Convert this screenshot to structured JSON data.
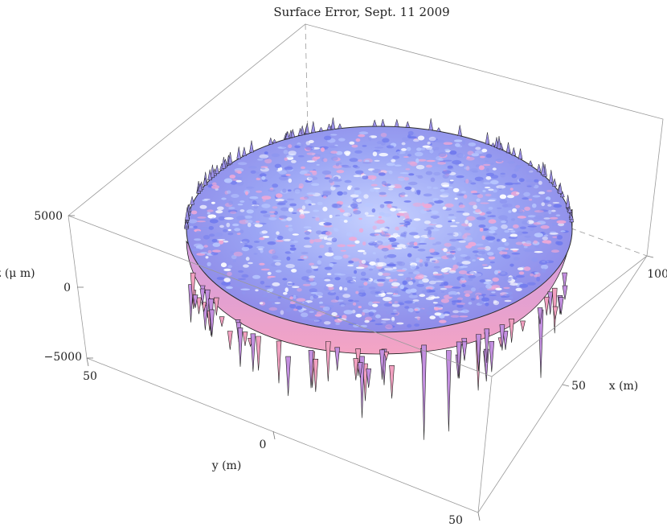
{
  "chart_data": {
    "type": "surface",
    "title": "Surface Error, Sept. 11 2009",
    "xlabel": "x (m)",
    "ylabel": "y (m)",
    "zlabel": "z (μ m)",
    "xlim": [
      0,
      100
    ],
    "ylim": [
      0,
      50
    ],
    "zlim": [
      -5000,
      5000
    ],
    "x_ticks": [
      "50",
      "100"
    ],
    "y_ticks": [
      "50",
      "0",
      "50"
    ],
    "z_ticks": [
      "5000",
      "0",
      "−5000"
    ],
    "surface": "circular dish, rough surface error map",
    "colors": {
      "surface_light": "#b9c8ff",
      "surface_blue": "#6f79ee",
      "surface_pink": "#f0a8d6",
      "surface_edge": "#f2a0c0",
      "box": "#9a9a9a"
    }
  }
}
